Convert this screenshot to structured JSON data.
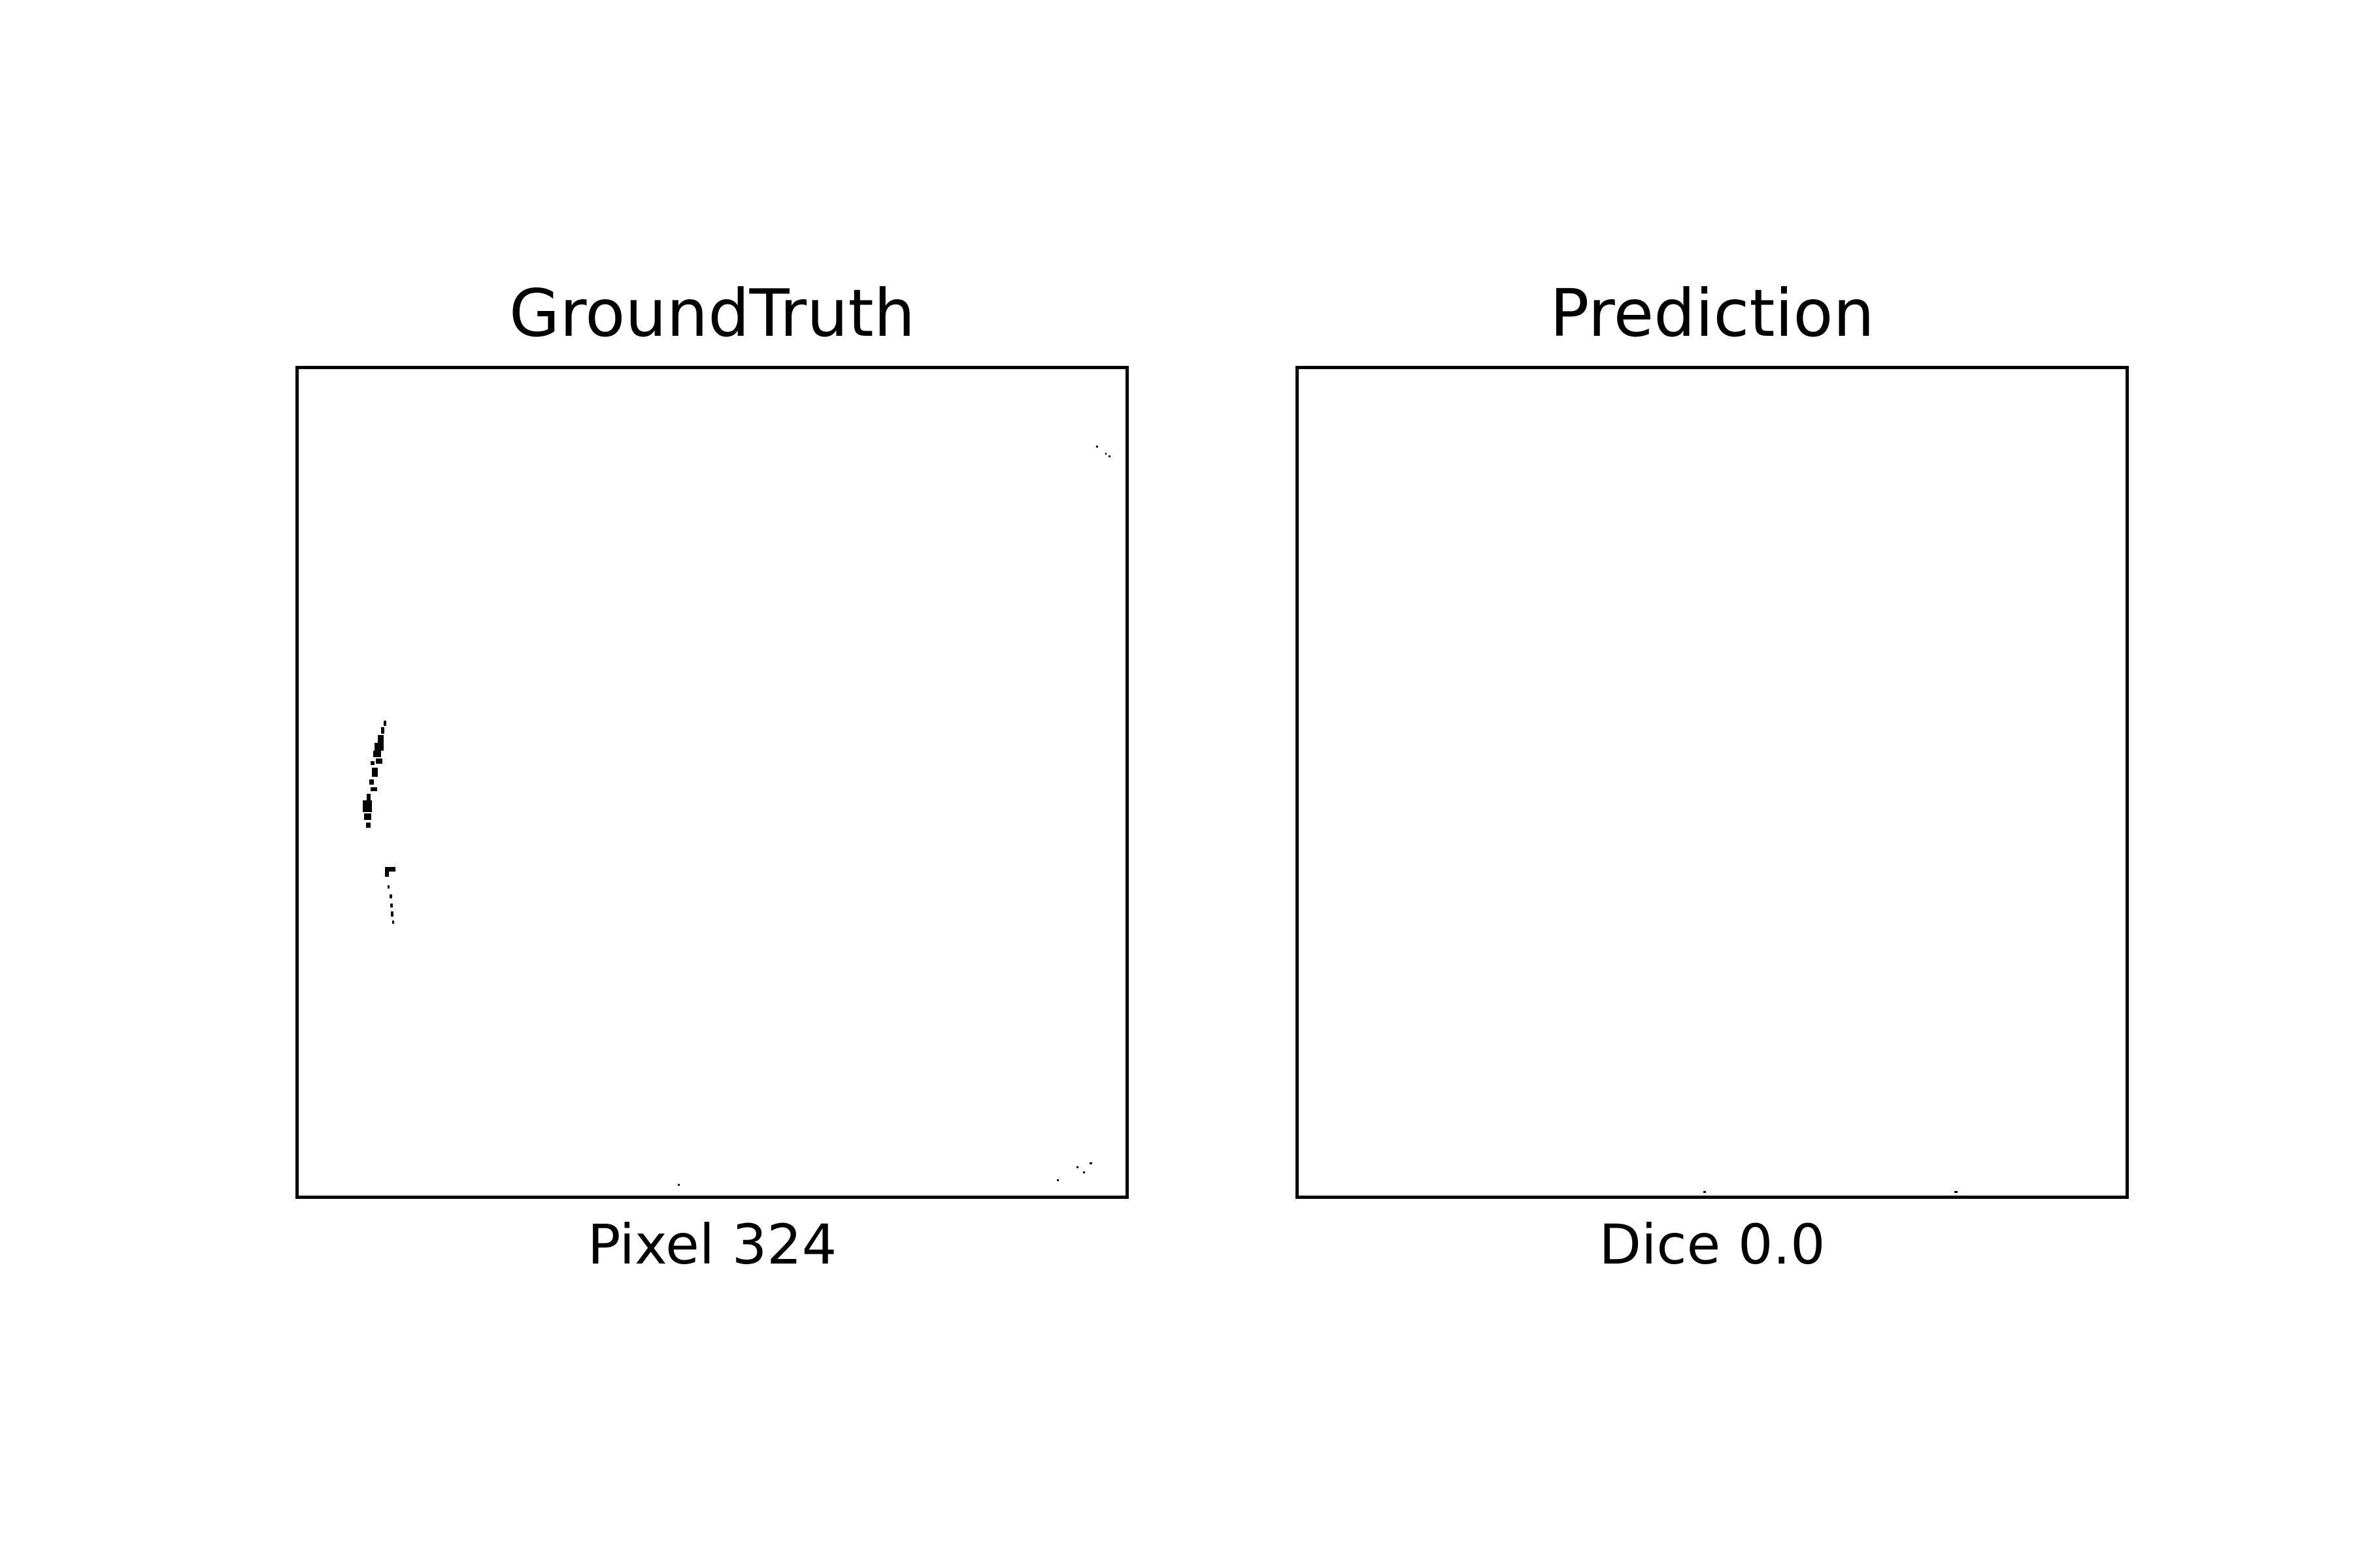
{
  "panels": [
    {
      "title": "GroundTruth",
      "caption": "Pixel 324"
    },
    {
      "title": "Prediction",
      "caption": "Dice 0.0"
    }
  ],
  "colors": {
    "background": "#ffffff",
    "mask": "#000000",
    "frame": "#000000"
  }
}
